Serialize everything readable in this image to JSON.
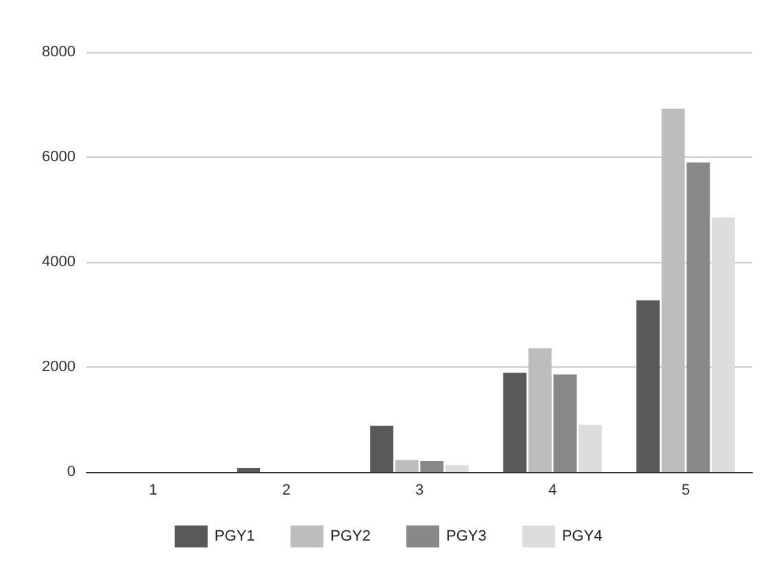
{
  "chart_data": {
    "type": "bar",
    "categories": [
      "1",
      "2",
      "3",
      "4",
      "5"
    ],
    "series": [
      {
        "name": "PGY1",
        "color": "#58595b",
        "values": [
          0,
          80,
          880,
          1890,
          3270
        ]
      },
      {
        "name": "PGY2",
        "color": "#bcbdc0",
        "values": [
          0,
          0,
          230,
          2360,
          6920
        ]
      },
      {
        "name": "PGY3",
        "color": "#87888b",
        "values": [
          0,
          0,
          210,
          1860,
          5900
        ]
      },
      {
        "name": "PGY4",
        "color": "#dcdddf",
        "values": [
          0,
          0,
          130,
          900,
          4850
        ]
      }
    ],
    "ylim": [
      0,
      8000
    ],
    "yticks": [
      0,
      2000,
      4000,
      6000,
      8000
    ],
    "grid": "y",
    "legend": "bottom"
  }
}
